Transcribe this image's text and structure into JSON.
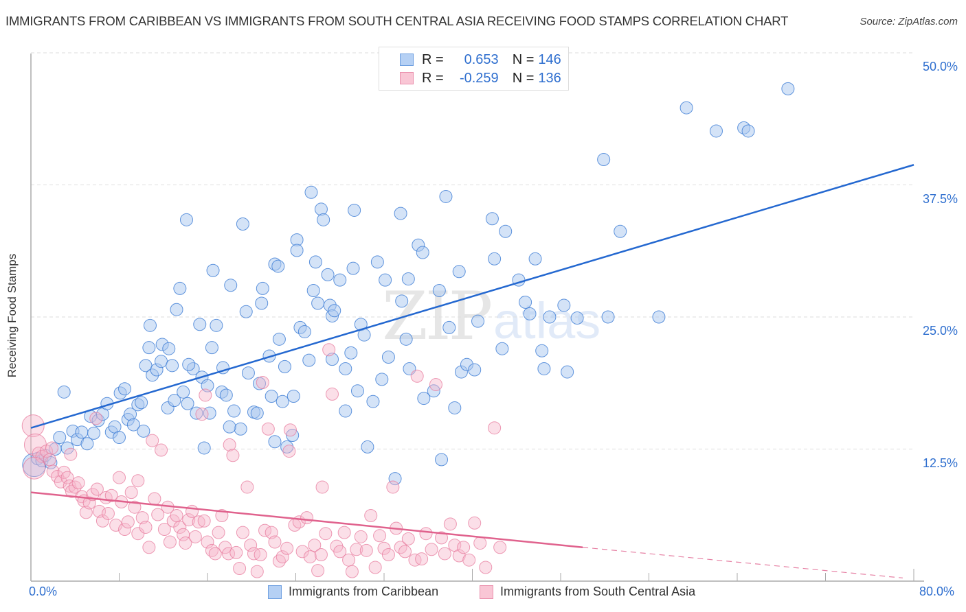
{
  "header": {
    "title": "IMMIGRANTS FROM CARIBBEAN VS IMMIGRANTS FROM SOUTH CENTRAL ASIA RECEIVING FOOD STAMPS CORRELATION CHART",
    "source": "Source: ZipAtlas.com"
  },
  "watermark": {
    "zip": "ZIP",
    "atlas": "atlas"
  },
  "legend": {
    "rows": [
      {
        "r_label": "R =",
        "r_value": "0.653",
        "n_label": "N =",
        "n_value": "146"
      },
      {
        "r_label": "R =",
        "r_value": "-0.259",
        "n_label": "N =",
        "n_value": "136"
      }
    ]
  },
  "bottom_legend": {
    "items": [
      {
        "label": "Immigrants from Caribbean"
      },
      {
        "label": "Immigrants from South Central Asia"
      }
    ]
  },
  "colors": {
    "blue_fill": "#a9c8f0",
    "blue_stroke": "#3a7bd5",
    "blue_line": "#2468d0",
    "pink_fill": "#f7b8cb",
    "pink_stroke": "#e77a9c",
    "pink_line": "#e0628d",
    "tick_label": "#2f6fcf",
    "grid": "#dddddd"
  },
  "chart_data": {
    "type": "scatter",
    "title": "IMMIGRANTS FROM CARIBBEAN VS IMMIGRANTS FROM SOUTH CENTRAL ASIA RECEIVING FOOD STAMPS CORRELATION CHART",
    "xlabel": "",
    "ylabel": "Receiving Food Stamps",
    "xlim": [
      0,
      80
    ],
    "ylim": [
      0,
      51
    ],
    "x_tick_labels": [
      "0.0%",
      "80.0%"
    ],
    "x_minor_ticks": [
      0,
      8,
      16,
      24,
      32,
      40,
      48,
      56,
      64,
      72,
      80
    ],
    "y_ticks": [
      12.5,
      25.0,
      37.5,
      50.0
    ],
    "y_tick_labels": [
      "12.5%",
      "25.0%",
      "37.5%",
      "50.0%"
    ],
    "grid": "horizontal-dashed",
    "legend_position": "top-center",
    "series": [
      {
        "name": "Immigrants from Caribbean",
        "R": 0.653,
        "N": 146,
        "trend": {
          "x": [
            0,
            80
          ],
          "y": [
            14.5,
            39.4
          ],
          "style": "solid"
        },
        "points": [
          [
            0.3,
            11.0
          ],
          [
            0.6,
            11.6
          ],
          [
            1.0,
            11.4
          ],
          [
            1.3,
            11.9
          ],
          [
            1.8,
            11.2
          ],
          [
            2.2,
            12.5
          ],
          [
            2.6,
            13.6
          ],
          [
            3.0,
            17.9
          ],
          [
            3.3,
            12.6
          ],
          [
            3.8,
            14.2
          ],
          [
            4.2,
            13.4
          ],
          [
            4.6,
            14.1
          ],
          [
            5.1,
            13.0
          ],
          [
            5.4,
            15.6
          ],
          [
            5.7,
            14.0
          ],
          [
            6.1,
            15.2
          ],
          [
            6.5,
            15.8
          ],
          [
            6.9,
            16.8
          ],
          [
            7.3,
            14.1
          ],
          [
            7.6,
            14.6
          ],
          [
            8.1,
            17.8
          ],
          [
            8.0,
            13.6
          ],
          [
            8.5,
            18.2
          ],
          [
            8.8,
            15.3
          ],
          [
            9.0,
            15.8
          ],
          [
            9.3,
            14.8
          ],
          [
            9.7,
            16.7
          ],
          [
            10.0,
            16.9
          ],
          [
            10.2,
            14.2
          ],
          [
            10.4,
            20.4
          ],
          [
            10.8,
            24.2
          ],
          [
            11.0,
            19.5
          ],
          [
            11.4,
            20.0
          ],
          [
            11.8,
            20.8
          ],
          [
            11.9,
            22.4
          ],
          [
            12.4,
            16.4
          ],
          [
            12.5,
            22.0
          ],
          [
            13.0,
            17.1
          ],
          [
            13.2,
            25.7
          ],
          [
            13.5,
            27.7
          ],
          [
            13.8,
            17.9
          ],
          [
            14.2,
            16.8
          ],
          [
            14.1,
            34.2
          ],
          [
            14.7,
            20.1
          ],
          [
            15.0,
            15.9
          ],
          [
            15.3,
            24.3
          ],
          [
            15.5,
            19.3
          ],
          [
            15.7,
            12.6
          ],
          [
            16.0,
            18.5
          ],
          [
            16.4,
            22.1
          ],
          [
            16.5,
            29.4
          ],
          [
            16.8,
            24.2
          ],
          [
            17.3,
            17.9
          ],
          [
            17.4,
            20.2
          ],
          [
            17.7,
            17.6
          ],
          [
            18.1,
            28.0
          ],
          [
            18.4,
            16.1
          ],
          [
            19.0,
            14.4
          ],
          [
            19.2,
            33.8
          ],
          [
            19.5,
            25.5
          ],
          [
            19.7,
            19.7
          ],
          [
            20.2,
            16.0
          ],
          [
            20.5,
            15.9
          ],
          [
            20.7,
            18.7
          ],
          [
            21.0,
            27.7
          ],
          [
            21.6,
            21.3
          ],
          [
            21.8,
            17.5
          ],
          [
            22.1,
            30.0
          ],
          [
            22.4,
            29.8
          ],
          [
            22.5,
            22.9
          ],
          [
            22.8,
            17.0
          ],
          [
            23.0,
            20.3
          ],
          [
            23.2,
            12.7
          ],
          [
            23.7,
            13.8
          ],
          [
            24.1,
            32.3
          ],
          [
            24.1,
            31.3
          ],
          [
            24.4,
            24.0
          ],
          [
            24.8,
            23.6
          ],
          [
            25.2,
            20.9
          ],
          [
            25.4,
            36.8
          ],
          [
            25.6,
            27.5
          ],
          [
            25.8,
            30.2
          ],
          [
            26.0,
            26.3
          ],
          [
            26.3,
            35.2
          ],
          [
            26.5,
            34.2
          ],
          [
            26.9,
            29.0
          ],
          [
            27.1,
            26.1
          ],
          [
            27.3,
            25.1
          ],
          [
            27.5,
            25.6
          ],
          [
            28.0,
            28.5
          ],
          [
            28.5,
            16.1
          ],
          [
            28.5,
            20.1
          ],
          [
            29.0,
            21.6
          ],
          [
            29.3,
            35.1
          ],
          [
            29.6,
            18.0
          ],
          [
            29.9,
            24.3
          ],
          [
            30.2,
            23.3
          ],
          [
            30.5,
            12.7
          ],
          [
            31.0,
            17.0
          ],
          [
            31.4,
            30.2
          ],
          [
            31.8,
            19.1
          ],
          [
            32.1,
            28.5
          ],
          [
            32.4,
            21.2
          ],
          [
            33.0,
            9.7
          ],
          [
            33.5,
            34.8
          ],
          [
            34.0,
            22.9
          ],
          [
            34.2,
            28.6
          ],
          [
            34.3,
            20.1
          ],
          [
            35.1,
            31.8
          ],
          [
            35.5,
            31.1
          ],
          [
            36.5,
            18.0
          ],
          [
            37.0,
            27.5
          ],
          [
            37.6,
            36.4
          ],
          [
            38.8,
            29.3
          ],
          [
            39.0,
            19.8
          ],
          [
            39.5,
            20.5
          ],
          [
            40.5,
            24.6
          ],
          [
            41.8,
            34.3
          ],
          [
            42.0,
            30.5
          ],
          [
            43.0,
            33.1
          ],
          [
            44.2,
            28.5
          ],
          [
            45.2,
            25.3
          ],
          [
            45.7,
            30.5
          ],
          [
            46.3,
            21.8
          ],
          [
            46.5,
            20.1
          ],
          [
            48.3,
            26.1
          ],
          [
            49.5,
            24.9
          ],
          [
            51.9,
            39.9
          ],
          [
            52.3,
            25.0
          ],
          [
            53.4,
            33.1
          ],
          [
            56.9,
            25.0
          ],
          [
            59.4,
            44.8
          ],
          [
            62.1,
            42.6
          ],
          [
            64.6,
            42.9
          ],
          [
            65.0,
            42.6
          ],
          [
            68.6,
            46.6
          ],
          [
            22.1,
            13.2
          ],
          [
            37.2,
            11.5
          ],
          [
            40.2,
            20.0
          ],
          [
            48.6,
            19.8
          ],
          [
            12.8,
            20.4
          ],
          [
            29.2,
            29.6
          ],
          [
            23.8,
            17.5
          ],
          [
            20.9,
            26.3
          ],
          [
            27.3,
            21.0
          ],
          [
            18.0,
            14.6
          ],
          [
            35.6,
            17.3
          ],
          [
            33.6,
            26.5
          ],
          [
            14.3,
            20.5
          ],
          [
            37.9,
            24.0
          ],
          [
            16.2,
            15.9
          ],
          [
            44.8,
            26.4
          ],
          [
            42.7,
            22.0
          ],
          [
            47.0,
            25.0
          ],
          [
            38.4,
            16.4
          ],
          [
            10.7,
            22.1
          ]
        ]
      },
      {
        "name": "Immigrants from South Central Asia",
        "R": -0.259,
        "N": 136,
        "trend": {
          "x": [
            0,
            50,
            79
          ],
          "y": [
            8.4,
            3.2,
            0.3
          ],
          "style": "solid-then-dashed",
          "solid_until_x": 50
        },
        "points": [
          [
            0.2,
            14.7
          ],
          [
            0.4,
            12.9
          ],
          [
            0.7,
            12.1
          ],
          [
            1.0,
            11.8
          ],
          [
            1.4,
            12.3
          ],
          [
            1.7,
            11.5
          ],
          [
            2.0,
            10.4
          ],
          [
            2.4,
            9.9
          ],
          [
            2.7,
            9.4
          ],
          [
            3.0,
            10.3
          ],
          [
            3.3,
            9.8
          ],
          [
            3.5,
            9.0
          ],
          [
            3.7,
            8.5
          ],
          [
            4.0,
            8.9
          ],
          [
            4.3,
            9.3
          ],
          [
            4.6,
            8.0
          ],
          [
            4.8,
            7.6
          ],
          [
            5.0,
            6.5
          ],
          [
            5.3,
            7.4
          ],
          [
            5.6,
            8.2
          ],
          [
            6.0,
            8.7
          ],
          [
            6.2,
            6.6
          ],
          [
            6.5,
            5.7
          ],
          [
            6.8,
            7.9
          ],
          [
            7.0,
            6.4
          ],
          [
            7.3,
            8.1
          ],
          [
            7.7,
            5.3
          ],
          [
            8.0,
            9.8
          ],
          [
            8.2,
            7.5
          ],
          [
            8.5,
            4.9
          ],
          [
            8.8,
            5.6
          ],
          [
            9.1,
            8.4
          ],
          [
            9.4,
            7.0
          ],
          [
            9.7,
            4.5
          ],
          [
            10.1,
            6.0
          ],
          [
            10.4,
            5.1
          ],
          [
            10.7,
            3.2
          ],
          [
            11.0,
            13.3
          ],
          [
            11.2,
            7.8
          ],
          [
            11.5,
            6.3
          ],
          [
            11.8,
            12.4
          ],
          [
            12.1,
            4.9
          ],
          [
            12.4,
            7.0
          ],
          [
            12.6,
            3.7
          ],
          [
            12.9,
            5.7
          ],
          [
            13.2,
            6.2
          ],
          [
            13.5,
            5.1
          ],
          [
            13.8,
            4.4
          ],
          [
            14.0,
            3.6
          ],
          [
            14.3,
            5.8
          ],
          [
            14.6,
            6.6
          ],
          [
            14.9,
            4.2
          ],
          [
            15.2,
            5.6
          ],
          [
            15.5,
            15.8
          ],
          [
            15.7,
            5.7
          ],
          [
            16.0,
            3.7
          ],
          [
            16.4,
            2.9
          ],
          [
            16.7,
            2.6
          ],
          [
            17.0,
            4.6
          ],
          [
            17.3,
            6.2
          ],
          [
            17.6,
            3.2
          ],
          [
            17.9,
            2.6
          ],
          [
            18.0,
            12.9
          ],
          [
            18.3,
            11.9
          ],
          [
            18.6,
            2.7
          ],
          [
            18.9,
            1.2
          ],
          [
            19.2,
            4.6
          ],
          [
            19.6,
            8.9
          ],
          [
            19.9,
            3.4
          ],
          [
            20.2,
            2.6
          ],
          [
            20.5,
            0.9
          ],
          [
            20.8,
            2.5
          ],
          [
            21.0,
            18.8
          ],
          [
            21.2,
            4.8
          ],
          [
            21.5,
            14.4
          ],
          [
            21.8,
            4.6
          ],
          [
            22.1,
            3.7
          ],
          [
            22.5,
            1.9
          ],
          [
            22.8,
            2.3
          ],
          [
            23.2,
            3.1
          ],
          [
            23.5,
            14.3
          ],
          [
            23.9,
            5.3
          ],
          [
            24.3,
            5.6
          ],
          [
            24.6,
            2.8
          ],
          [
            25.0,
            6.0
          ],
          [
            25.3,
            2.3
          ],
          [
            25.7,
            3.4
          ],
          [
            26.0,
            1.0
          ],
          [
            26.3,
            2.5
          ],
          [
            26.7,
            4.5
          ],
          [
            27.0,
            21.9
          ],
          [
            27.3,
            17.7
          ],
          [
            27.7,
            3.3
          ],
          [
            28.0,
            2.8
          ],
          [
            28.4,
            4.6
          ],
          [
            28.8,
            2.0
          ],
          [
            29.1,
            0.9
          ],
          [
            29.5,
            3.0
          ],
          [
            29.9,
            4.2
          ],
          [
            30.4,
            2.9
          ],
          [
            30.8,
            6.2
          ],
          [
            31.2,
            1.3
          ],
          [
            31.6,
            4.3
          ],
          [
            32.0,
            3.1
          ],
          [
            32.4,
            2.5
          ],
          [
            32.8,
            8.9
          ],
          [
            33.1,
            5.0
          ],
          [
            33.5,
            3.2
          ],
          [
            33.9,
            2.8
          ],
          [
            34.2,
            4.0
          ],
          [
            34.8,
            2.0
          ],
          [
            35.0,
            19.4
          ],
          [
            35.4,
            2.1
          ],
          [
            35.8,
            4.5
          ],
          [
            36.3,
            3.0
          ],
          [
            36.7,
            18.6
          ],
          [
            37.2,
            4.1
          ],
          [
            37.5,
            2.6
          ],
          [
            38.0,
            5.4
          ],
          [
            38.4,
            3.4
          ],
          [
            38.8,
            2.4
          ],
          [
            39.2,
            3.2
          ],
          [
            39.7,
            2.0
          ],
          [
            40.2,
            5.5
          ],
          [
            40.7,
            3.6
          ],
          [
            41.2,
            1.3
          ],
          [
            42.0,
            14.5
          ],
          [
            42.5,
            3.2
          ],
          [
            0.3,
            10.7
          ],
          [
            1.9,
            12.6
          ],
          [
            3.6,
            12.0
          ],
          [
            5.9,
            15.4
          ],
          [
            9.7,
            9.5
          ],
          [
            15.8,
            17.6
          ],
          [
            23.4,
            12.3
          ],
          [
            26.4,
            8.9
          ]
        ]
      }
    ]
  }
}
